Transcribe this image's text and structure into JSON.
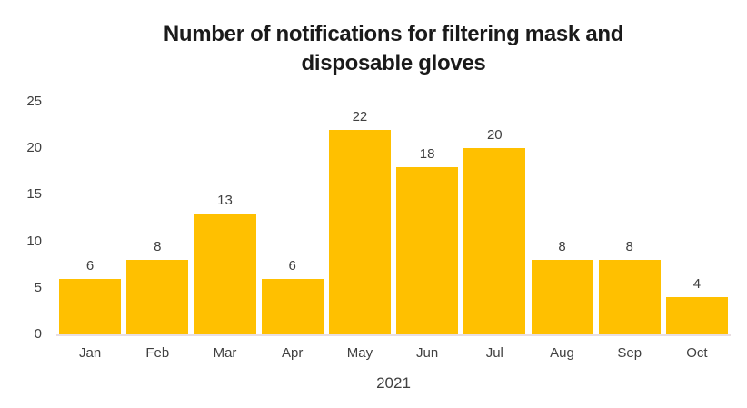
{
  "chart_data": {
    "type": "bar",
    "title": "Number of notifications for filtering mask and disposable gloves",
    "title_lines": [
      "Number of notifications for filtering mask and",
      "disposable gloves"
    ],
    "categories": [
      "Jan",
      "Feb",
      "Mar",
      "Apr",
      "May",
      "Jun",
      "Jul",
      "Aug",
      "Sep",
      "Oct"
    ],
    "values": [
      6,
      8,
      13,
      6,
      22,
      18,
      20,
      8,
      8,
      4
    ],
    "xlabel": "2021",
    "ylabel": "",
    "ylim": [
      0,
      25
    ],
    "yticks": [
      0,
      5,
      10,
      15,
      20,
      25
    ],
    "grid": false,
    "legend": false,
    "data_labels": true,
    "colors": {
      "bar": "#ffc000",
      "axis_line": "#e8dee2",
      "tick_label": "#404040",
      "title": "#1a1a1a"
    }
  }
}
